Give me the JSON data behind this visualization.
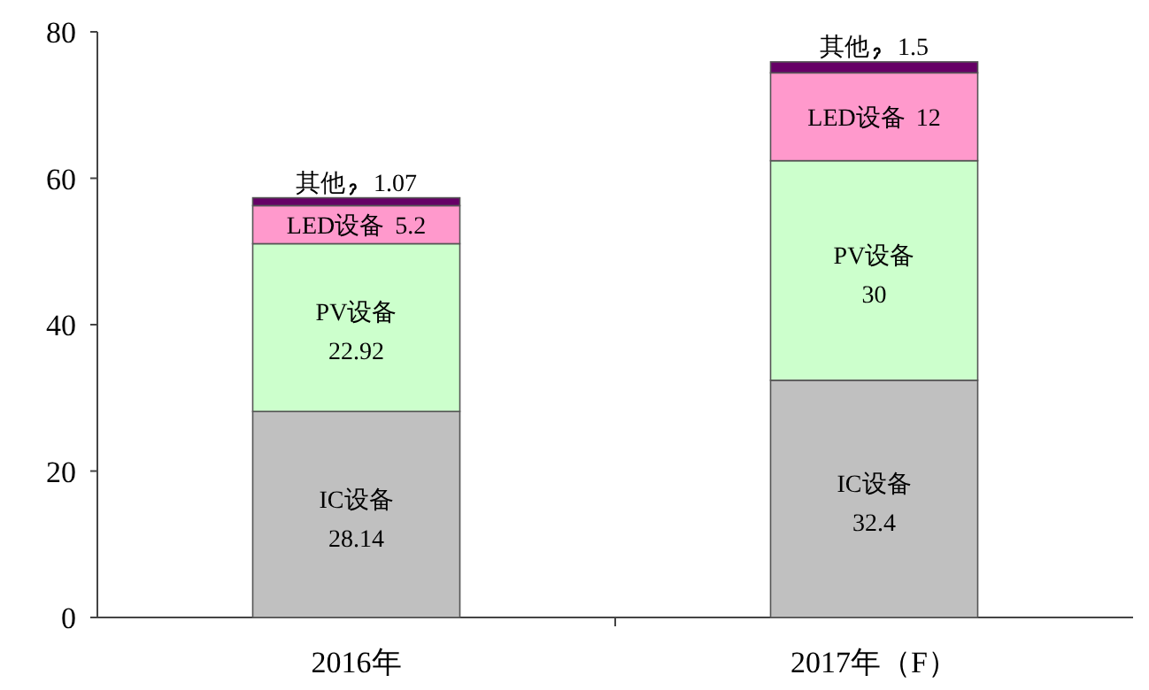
{
  "chart_data": {
    "type": "bar",
    "stacked": true,
    "categories": [
      "2016年",
      "2017年（F）"
    ],
    "series": [
      {
        "name": "IC设备",
        "color": "#c0c0c0",
        "values": [
          28.14,
          32.4
        ]
      },
      {
        "name": "PV设备",
        "color": "#ccffcc",
        "values": [
          22.92,
          30
        ]
      },
      {
        "name": "LED设备",
        "color": "#ff99cc",
        "values": [
          5.2,
          12
        ]
      },
      {
        "name": "其他",
        "color": "#660066",
        "values": [
          1.07,
          1.5
        ]
      }
    ],
    "data_labels": true,
    "ylim": [
      0,
      80
    ],
    "yticks": [
      0,
      20,
      40,
      60,
      80
    ],
    "grid": false
  }
}
